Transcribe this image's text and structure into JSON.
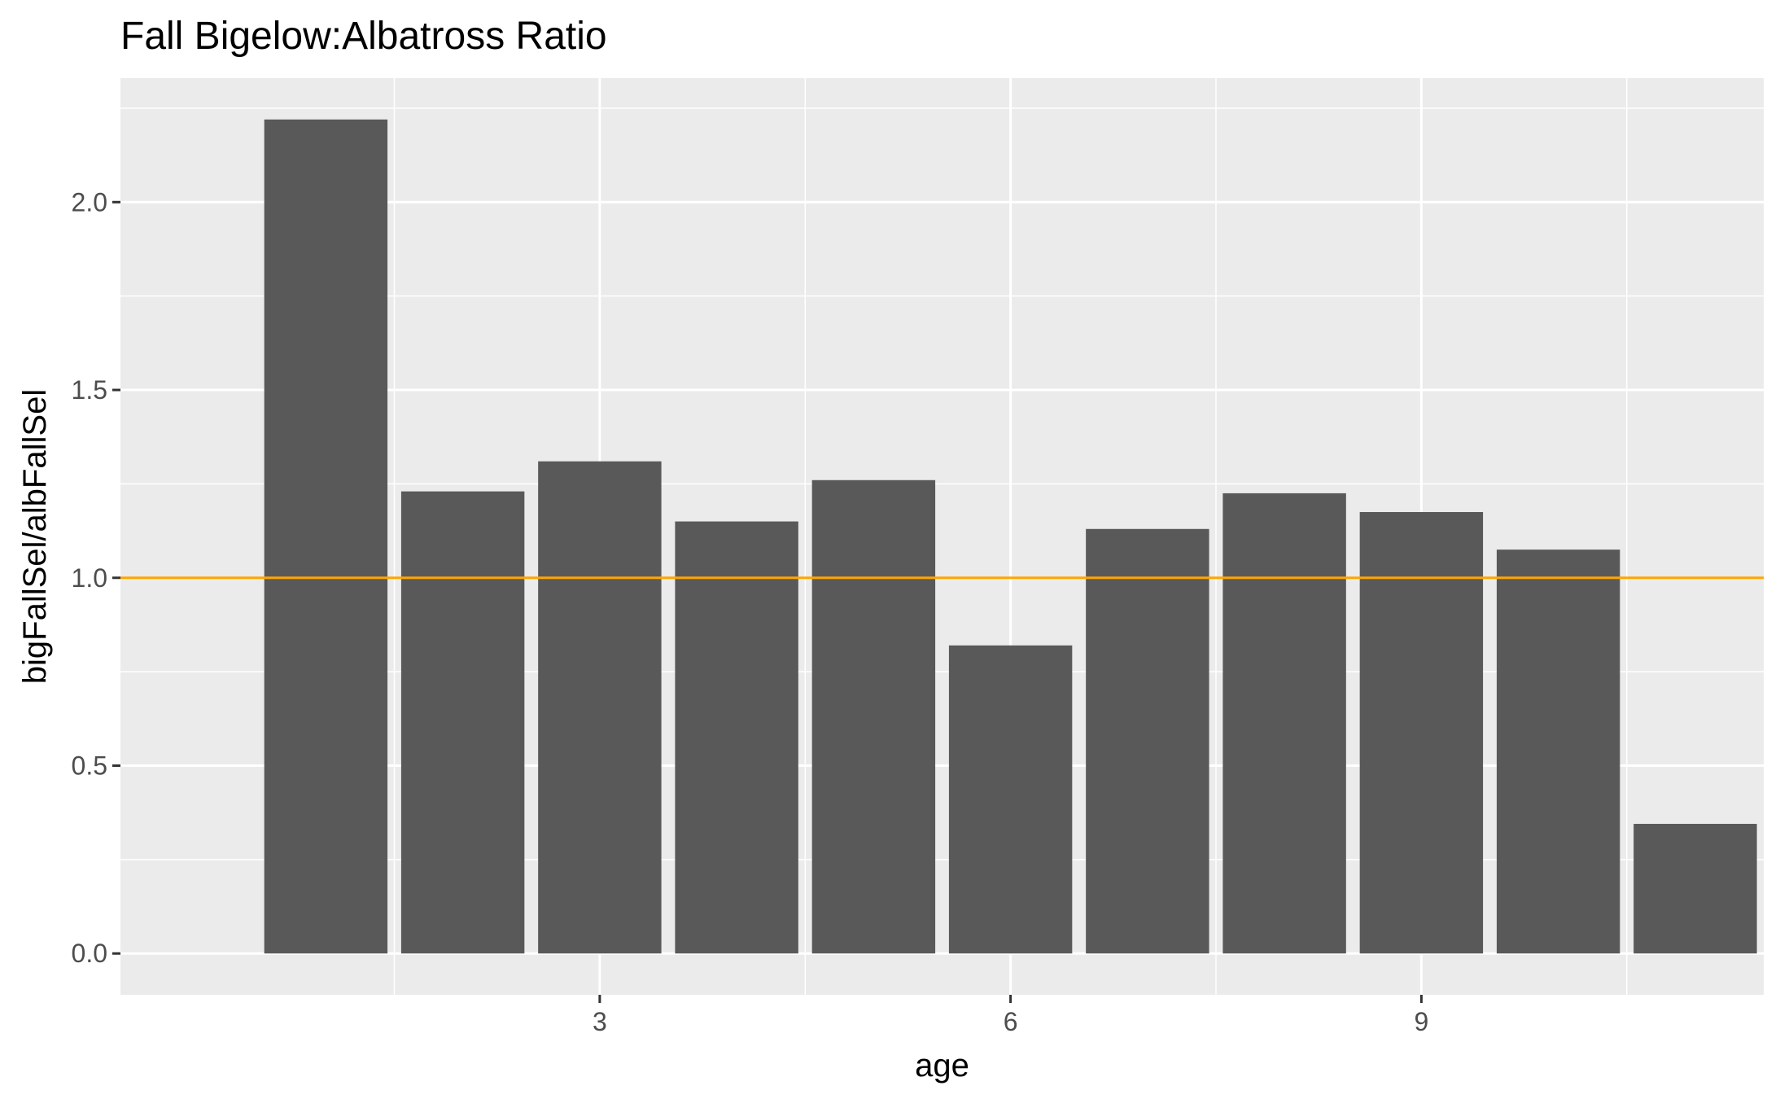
{
  "chart_data": {
    "type": "bar",
    "title": "Fall Bigelow:Albatross Ratio",
    "xlabel": "age",
    "ylabel": "bigFallSel/albFallSel",
    "x": [
      1,
      2,
      3,
      4,
      5,
      6,
      7,
      8,
      9,
      10,
      11
    ],
    "values": [
      2.22,
      1.23,
      1.31,
      1.15,
      1.26,
      0.82,
      1.13,
      1.225,
      1.175,
      1.075,
      0.345
    ],
    "xlim": [
      -0.5,
      11.5
    ],
    "ylim": [
      -0.11,
      2.33
    ],
    "xticks": [
      3,
      6,
      9
    ],
    "xtick_labels": [
      "3",
      "6",
      "9"
    ],
    "yticks": [
      0.0,
      0.5,
      1.0,
      1.5,
      2.0
    ],
    "ytick_labels": [
      "0.0",
      "0.5",
      "1.0",
      "1.5",
      "2.0"
    ],
    "reference_line": {
      "y": 1.0,
      "color": "#FFA500"
    },
    "grid": true,
    "bar_color": "#595959",
    "panel_background": "#EBEBEB",
    "grid_color": "#FFFFFF"
  }
}
